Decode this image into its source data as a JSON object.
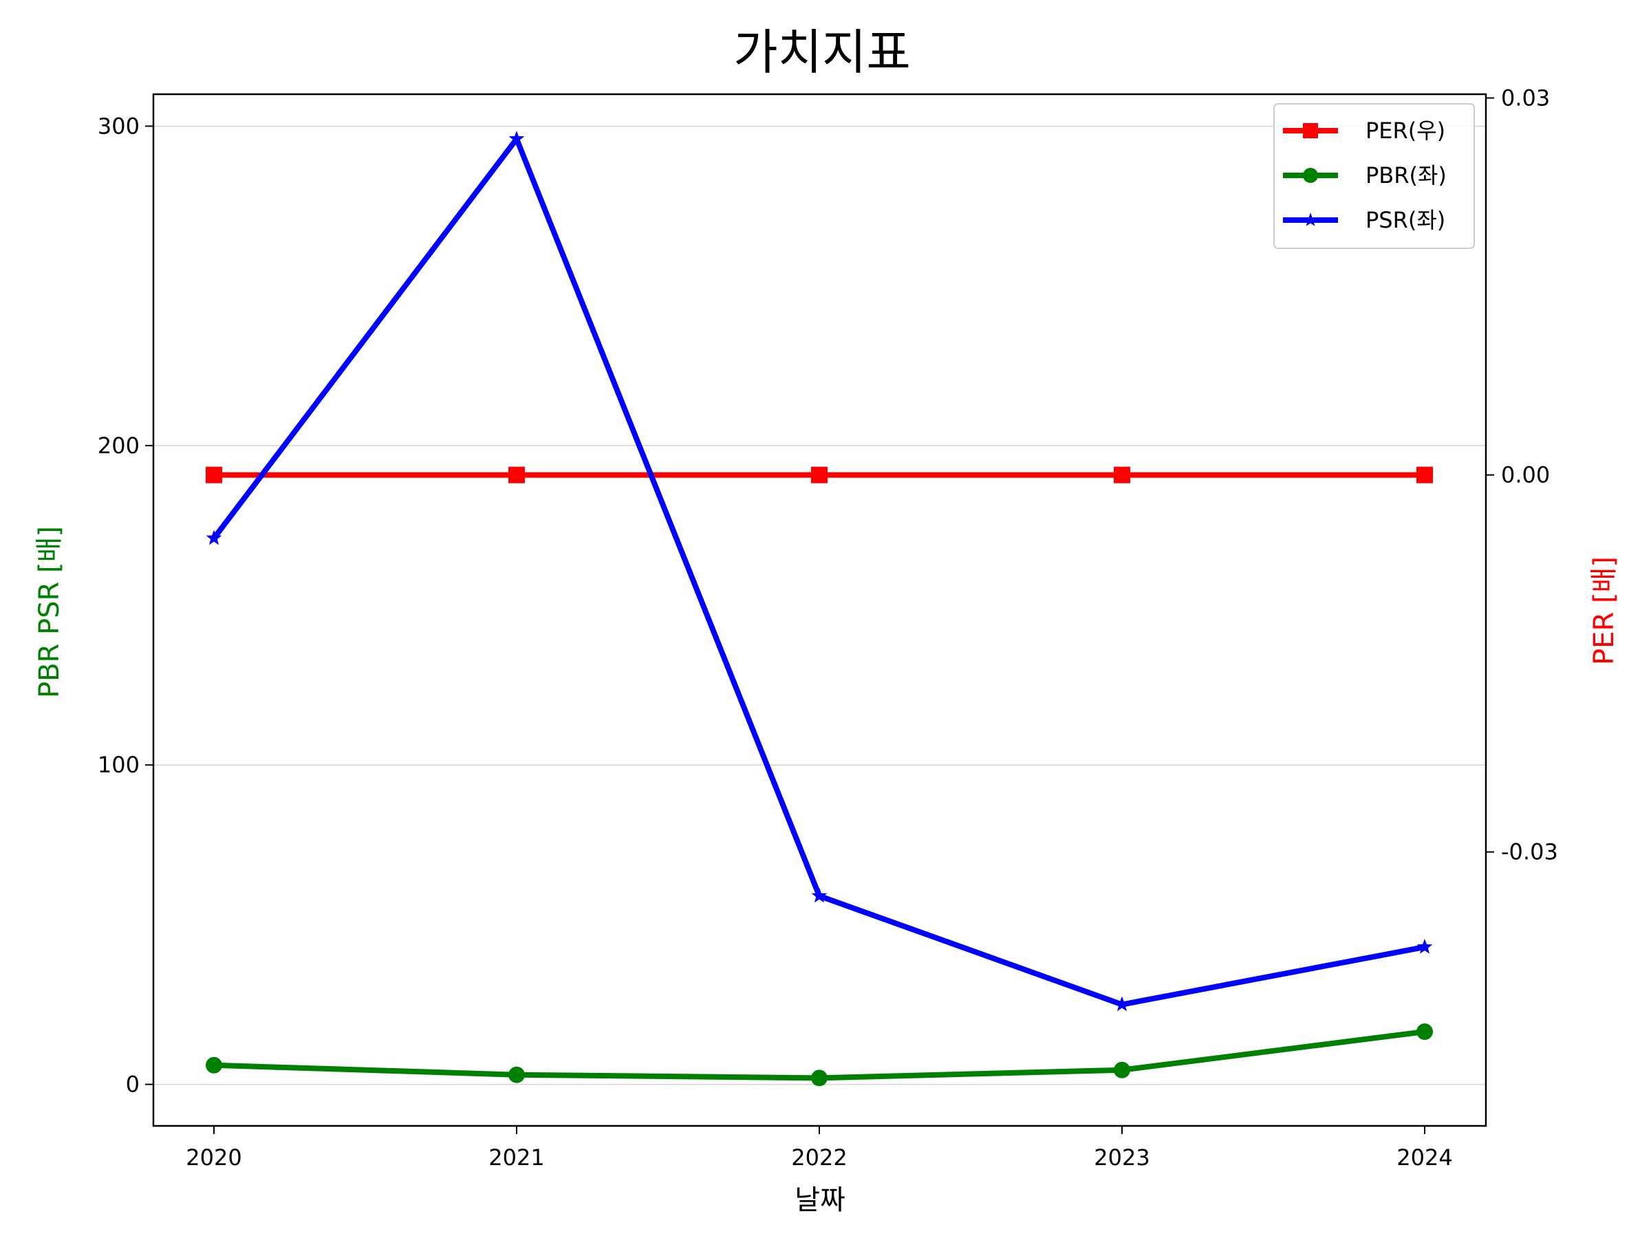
{
  "chart_data": {
    "type": "line",
    "title": "가치지표",
    "xlabel": "날짜",
    "ylabel_left": "PBR PSR [배]",
    "ylabel_right": "PER [배]",
    "categories": [
      "2020",
      "2021",
      "2022",
      "2023",
      "2024"
    ],
    "left_axis": {
      "ylim": [
        -13,
        310
      ],
      "ticks": [
        0,
        100,
        200,
        300
      ],
      "tick_labels": [
        "0",
        "100",
        "200",
        "300"
      ],
      "grid": true
    },
    "right_axis": {
      "ylim": [
        -0.0518,
        0.0303
      ],
      "ticks": [
        -0.03,
        0,
        0.03
      ],
      "tick_labels": [
        "-0.03",
        "0.00",
        "0.03"
      ]
    },
    "series": [
      {
        "name": "PER(우)",
        "axis": "right",
        "color": "#ff0000",
        "marker": "square",
        "values": [
          0,
          0,
          0,
          0,
          0
        ]
      },
      {
        "name": "PBR(좌)",
        "axis": "left",
        "color": "#008000",
        "marker": "circle",
        "values": [
          6,
          3,
          2,
          4.5,
          16.5
        ]
      },
      {
        "name": "PSR(좌)",
        "axis": "left",
        "color": "#0000ff",
        "marker": "star",
        "values": [
          171,
          296,
          59,
          25,
          43
        ]
      }
    ],
    "legend_position": "top-right"
  }
}
